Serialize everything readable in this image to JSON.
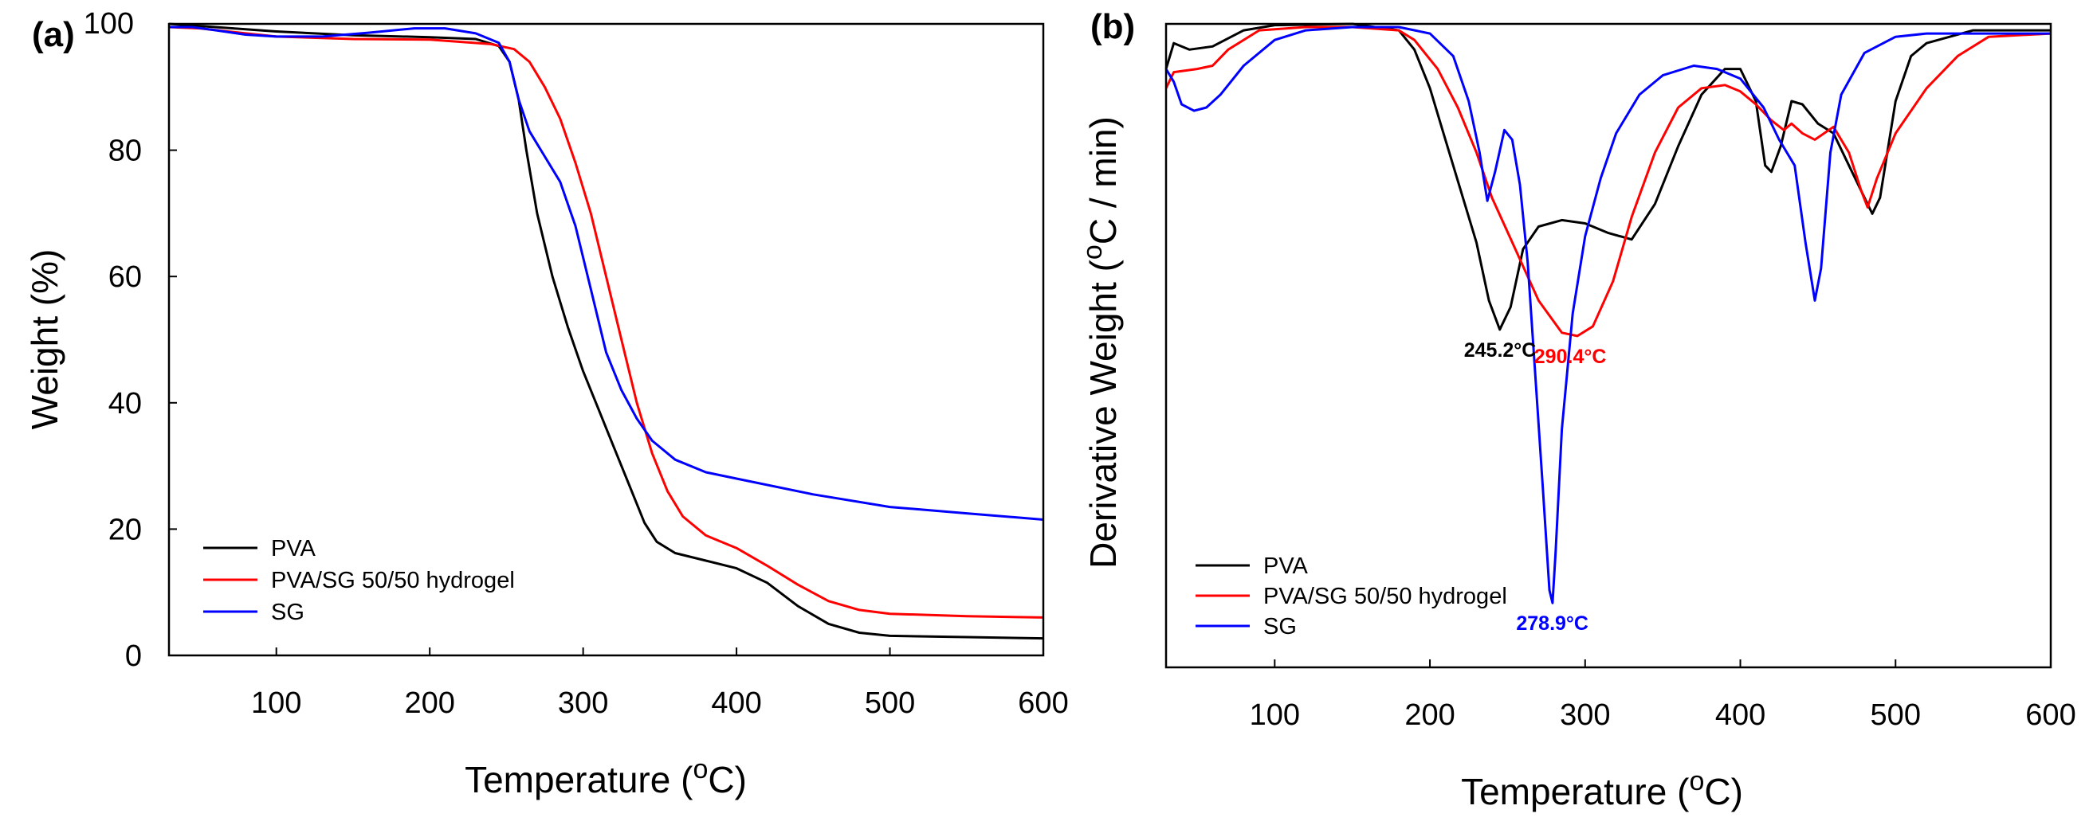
{
  "chart_data": [
    {
      "panel_label": "(a)",
      "type": "line",
      "xlabel": "Temperature (",
      "xlabel_sup": "o",
      "xlabel_tail": "C)",
      "ylabel": "Weight (%)",
      "xlim": [
        30,
        600
      ],
      "ylim": [
        0,
        100
      ],
      "xticks": [
        "100",
        "200",
        "300",
        "400",
        "500",
        "600"
      ],
      "yticks": [
        "0",
        "20",
        "40",
        "60",
        "80",
        "100"
      ],
      "legend_position": "bottom-left",
      "series": [
        {
          "name": "PVA",
          "color": "#000000",
          "points": [
            [
              30,
              100
            ],
            [
              60,
              99.5
            ],
            [
              100,
              98.8
            ],
            [
              150,
              98.2
            ],
            [
              200,
              97.9
            ],
            [
              230,
              97.6
            ],
            [
              245,
              96.5
            ],
            [
              252,
              94
            ],
            [
              258,
              88
            ],
            [
              263,
              80
            ],
            [
              270,
              70
            ],
            [
              280,
              60
            ],
            [
              290,
              52
            ],
            [
              300,
              45
            ],
            [
              310,
              39
            ],
            [
              320,
              33
            ],
            [
              330,
              27
            ],
            [
              340,
              21
            ],
            [
              348,
              18
            ],
            [
              360,
              16.2
            ],
            [
              380,
              15
            ],
            [
              400,
              13.8
            ],
            [
              420,
              11.5
            ],
            [
              440,
              7.8
            ],
            [
              460,
              5
            ],
            [
              480,
              3.6
            ],
            [
              500,
              3.1
            ],
            [
              550,
              2.9
            ],
            [
              600,
              2.7
            ]
          ]
        },
        {
          "name": "PVA/SG 50/50 hydrogel",
          "color": "#ff0000",
          "points": [
            [
              30,
              99.5
            ],
            [
              50,
              99.3
            ],
            [
              80,
              98.5
            ],
            [
              100,
              98
            ],
            [
              150,
              97.6
            ],
            [
              200,
              97.5
            ],
            [
              240,
              96.8
            ],
            [
              255,
              96
            ],
            [
              265,
              94
            ],
            [
              275,
              90
            ],
            [
              285,
              85
            ],
            [
              295,
              78
            ],
            [
              305,
              70
            ],
            [
              315,
              60
            ],
            [
              325,
              50
            ],
            [
              335,
              40
            ],
            [
              345,
              32
            ],
            [
              355,
              26
            ],
            [
              365,
              22
            ],
            [
              380,
              19
            ],
            [
              400,
              17
            ],
            [
              420,
              14.2
            ],
            [
              440,
              11.2
            ],
            [
              460,
              8.6
            ],
            [
              480,
              7.2
            ],
            [
              500,
              6.6
            ],
            [
              550,
              6.2
            ],
            [
              600,
              6
            ]
          ]
        },
        {
          "name": "SG",
          "color": "#0000ff",
          "points": [
            [
              30,
              99.5
            ],
            [
              45,
              99.5
            ],
            [
              60,
              99
            ],
            [
              80,
              98.3
            ],
            [
              100,
              98
            ],
            [
              130,
              98
            ],
            [
              160,
              98.6
            ],
            [
              190,
              99.3
            ],
            [
              210,
              99.3
            ],
            [
              230,
              98.5
            ],
            [
              245,
              97
            ],
            [
              252,
              94
            ],
            [
              258,
              88
            ],
            [
              265,
              83
            ],
            [
              275,
              79
            ],
            [
              285,
              75
            ],
            [
              295,
              68
            ],
            [
              305,
              58
            ],
            [
              315,
              48
            ],
            [
              325,
              42
            ],
            [
              335,
              37.5
            ],
            [
              345,
              34
            ],
            [
              360,
              31
            ],
            [
              380,
              29
            ],
            [
              400,
              28
            ],
            [
              450,
              25.5
            ],
            [
              500,
              23.5
            ],
            [
              550,
              22.5
            ],
            [
              600,
              21.5
            ]
          ]
        }
      ]
    },
    {
      "panel_label": "(b)",
      "type": "line",
      "xlabel": "Temperature (",
      "xlabel_sup": "o",
      "xlabel_tail": "C)",
      "ylabel": "Derivative Weight (",
      "ylabel_sup": "o",
      "ylabel_tail": "C / min)",
      "xlim": [
        30,
        600
      ],
      "ylim": [
        0,
        100
      ],
      "y_ticks_shown": false,
      "xticks": [
        "100",
        "200",
        "300",
        "400",
        "500",
        "600"
      ],
      "legend_position": "bottom-left",
      "series": [
        {
          "name": "PVA",
          "color": "#000000",
          "points": [
            [
              30,
              93
            ],
            [
              35,
              97
            ],
            [
              45,
              96
            ],
            [
              60,
              96.5
            ],
            [
              80,
              99
            ],
            [
              100,
              99.8
            ],
            [
              150,
              100
            ],
            [
              180,
              99
            ],
            [
              190,
              96
            ],
            [
              200,
              90
            ],
            [
              210,
              82
            ],
            [
              220,
              74
            ],
            [
              230,
              66
            ],
            [
              238,
              57
            ],
            [
              245,
              52.5
            ],
            [
              252,
              56
            ],
            [
              260,
              65
            ],
            [
              270,
              68.5
            ],
            [
              285,
              69.5
            ],
            [
              300,
              69
            ],
            [
              315,
              67.5
            ],
            [
              330,
              66.5
            ],
            [
              345,
              72
            ],
            [
              360,
              81
            ],
            [
              375,
              89
            ],
            [
              390,
              93
            ],
            [
              400,
              93
            ],
            [
              410,
              88
            ],
            [
              416,
              78
            ],
            [
              420,
              77
            ],
            [
              426,
              81
            ],
            [
              433,
              88
            ],
            [
              440,
              87.5
            ],
            [
              450,
              84.5
            ],
            [
              460,
              83
            ],
            [
              470,
              78
            ],
            [
              480,
              73
            ],
            [
              485,
              70.5
            ],
            [
              490,
              73
            ],
            [
              500,
              88
            ],
            [
              510,
              95
            ],
            [
              520,
              97
            ],
            [
              550,
              99
            ],
            [
              600,
              99
            ]
          ]
        },
        {
          "name": "PVA/SG 50/50 hydrogel",
          "color": "#ff0000",
          "points": [
            [
              30,
              90
            ],
            [
              35,
              92.5
            ],
            [
              50,
              93
            ],
            [
              60,
              93.5
            ],
            [
              70,
              96
            ],
            [
              90,
              99
            ],
            [
              120,
              99.5
            ],
            [
              150,
              99.5
            ],
            [
              180,
              99
            ],
            [
              190,
              97.5
            ],
            [
              205,
              93
            ],
            [
              218,
              87
            ],
            [
              230,
              80
            ],
            [
              240,
              73
            ],
            [
              255,
              65
            ],
            [
              270,
              57
            ],
            [
              285,
              52
            ],
            [
              295,
              51.5
            ],
            [
              305,
              53
            ],
            [
              318,
              60
            ],
            [
              330,
              70
            ],
            [
              345,
              80
            ],
            [
              360,
              87
            ],
            [
              375,
              90
            ],
            [
              390,
              90.5
            ],
            [
              400,
              89.5
            ],
            [
              410,
              87.5
            ],
            [
              420,
              85
            ],
            [
              428,
              83.5
            ],
            [
              433,
              84.5
            ],
            [
              440,
              83
            ],
            [
              448,
              82
            ],
            [
              460,
              84
            ],
            [
              470,
              80
            ],
            [
              478,
              74
            ],
            [
              482,
              71.5
            ],
            [
              488,
              76
            ],
            [
              500,
              83
            ],
            [
              520,
              90
            ],
            [
              540,
              95
            ],
            [
              560,
              98
            ],
            [
              600,
              98.5
            ]
          ]
        },
        {
          "name": "SG",
          "color": "#0000ff",
          "points": [
            [
              30,
              93
            ],
            [
              35,
              91
            ],
            [
              40,
              87.5
            ],
            [
              48,
              86.5
            ],
            [
              56,
              87
            ],
            [
              65,
              89
            ],
            [
              80,
              93.5
            ],
            [
              100,
              97.5
            ],
            [
              120,
              99
            ],
            [
              150,
              99.5
            ],
            [
              180,
              99.5
            ],
            [
              200,
              98.5
            ],
            [
              215,
              95
            ],
            [
              225,
              88
            ],
            [
              232,
              80
            ],
            [
              237,
              72.5
            ],
            [
              242,
              77
            ],
            [
              248,
              83.5
            ],
            [
              253,
              82
            ],
            [
              258,
              75
            ],
            [
              263,
              63
            ],
            [
              268,
              45
            ],
            [
              273,
              27
            ],
            [
              277,
              12
            ],
            [
              279,
              10
            ],
            [
              281,
              18
            ],
            [
              285,
              37
            ],
            [
              292,
              55
            ],
            [
              300,
              67
            ],
            [
              310,
              76
            ],
            [
              320,
              83
            ],
            [
              335,
              89
            ],
            [
              350,
              92
            ],
            [
              370,
              93.5
            ],
            [
              385,
              93
            ],
            [
              400,
              91.5
            ],
            [
              415,
              87
            ],
            [
              425,
              82
            ],
            [
              435,
              78
            ],
            [
              442,
              66
            ],
            [
              448,
              57
            ],
            [
              452,
              62
            ],
            [
              458,
              80
            ],
            [
              465,
              89
            ],
            [
              480,
              95.5
            ],
            [
              500,
              98
            ],
            [
              520,
              98.5
            ],
            [
              550,
              98.5
            ],
            [
              600,
              98.5
            ]
          ]
        }
      ],
      "annotations": [
        {
          "text": "245.2°C",
          "x": 245.2,
          "series": "PVA",
          "color": "#000000"
        },
        {
          "text": "290.4°C",
          "x": 290.4,
          "series": "PVA/SG 50/50 hydrogel",
          "color": "#ff0000"
        },
        {
          "text": "278.9°C",
          "x": 278.9,
          "series": "SG",
          "color": "#0000ff"
        }
      ]
    }
  ]
}
